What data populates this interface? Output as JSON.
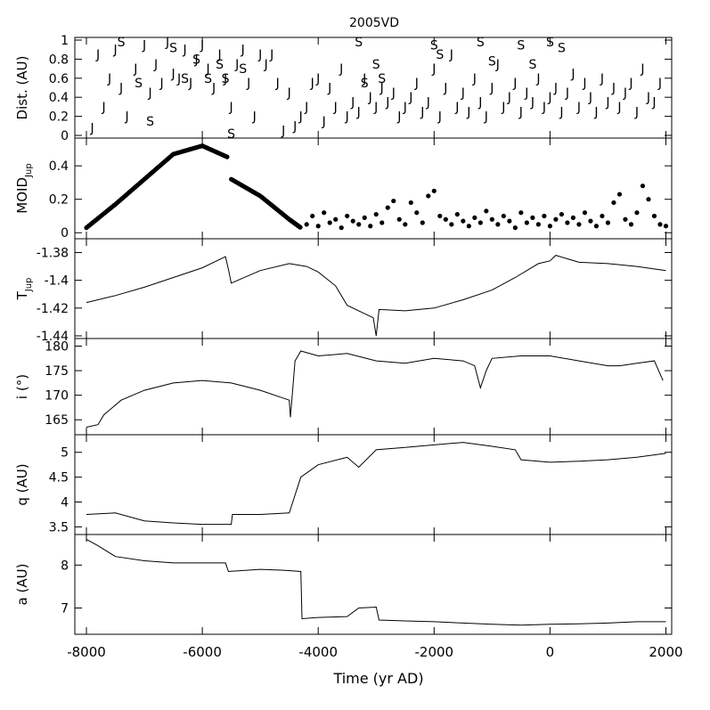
{
  "figure": {
    "title": "2005VD",
    "xlabel": "Time (yr AD)",
    "xlim": [
      -8200,
      2100
    ],
    "xticks": [
      -8000,
      -6000,
      -4000,
      -2000,
      0,
      2000
    ]
  },
  "chart_data": [
    {
      "id": "dist",
      "type": "scatter",
      "ylabel": "Dist. (AU)",
      "ylim": [
        0,
        1
      ],
      "yticks": [
        "0",
        "0.2",
        "0.4",
        "0.6",
        "0.8",
        "1"
      ],
      "marker_labels": {
        "jupiter": "J",
        "saturn": "S"
      },
      "series": [
        {
          "name": "J",
          "x": [
            -7900,
            -7800,
            -7700,
            -7600,
            -7500,
            -7400,
            -7300,
            -7150,
            -7000,
            -6900,
            -6800,
            -6700,
            -6600,
            -6500,
            -6400,
            -6300,
            -6200,
            -6100,
            -6000,
            -5900,
            -5800,
            -5700,
            -5600,
            -5500,
            -5400,
            -5300,
            -5200,
            -5100,
            -5000,
            -4900,
            -4800,
            -4700,
            -4600,
            -4500,
            -4400,
            -4300,
            -4200,
            -4100,
            -4000,
            -3900,
            -3800,
            -3700,
            -3600,
            -3500,
            -3400,
            -3300,
            -3200,
            -3100,
            -3000,
            -2900,
            -2800,
            -2700,
            -2600,
            -2500,
            -2400,
            -2300,
            -2200,
            -2100,
            -2000,
            -1900,
            -1800,
            -1700,
            -1600,
            -1500,
            -1400,
            -1300,
            -1200,
            -1100,
            -1000,
            -900,
            -800,
            -700,
            -600,
            -500,
            -400,
            -300,
            -200,
            -100,
            0,
            100,
            200,
            300,
            400,
            500,
            600,
            700,
            800,
            900,
            1000,
            1100,
            1200,
            1300,
            1400,
            1500,
            1600,
            1700,
            1800,
            1900
          ],
          "y": [
            0.08,
            0.85,
            0.3,
            0.6,
            0.9,
            0.5,
            0.2,
            0.7,
            0.95,
            0.45,
            0.75,
            0.55,
            0.98,
            0.65,
            0.6,
            0.9,
            0.55,
            0.8,
            0.95,
            0.7,
            0.5,
            0.85,
            0.6,
            0.3,
            0.75,
            0.9,
            0.55,
            0.2,
            0.85,
            0.75,
            0.85,
            0.55,
            0.05,
            0.45,
            0.1,
            0.2,
            0.3,
            0.55,
            0.6,
            0.15,
            0.5,
            0.3,
            0.7,
            0.2,
            0.35,
            0.25,
            0.6,
            0.4,
            0.3,
            0.5,
            0.35,
            0.45,
            0.2,
            0.3,
            0.4,
            0.55,
            0.25,
            0.35,
            0.7,
            0.2,
            0.5,
            0.85,
            0.3,
            0.45,
            0.25,
            0.6,
            0.35,
            0.2,
            0.5,
            0.75,
            0.3,
            0.4,
            0.55,
            0.25,
            0.45,
            0.35,
            0.6,
            0.3,
            0.4,
            0.5,
            0.25,
            0.45,
            0.65,
            0.3,
            0.55,
            0.4,
            0.25,
            0.6,
            0.35,
            0.5,
            0.3,
            0.45,
            0.55,
            0.25,
            0.7,
            0.4,
            0.35,
            0.55
          ]
        },
        {
          "name": "S",
          "x": [
            -7400,
            -7100,
            -6900,
            -6500,
            -6300,
            -6100,
            -5900,
            -5700,
            -5600,
            -5500,
            -5300,
            -3300,
            -3200,
            -3000,
            -2900,
            -2000,
            -1900,
            -1200,
            -1000,
            -500,
            -300,
            0,
            200
          ],
          "y": [
            0.98,
            0.55,
            0.15,
            0.92,
            0.6,
            0.8,
            0.6,
            0.75,
            0.6,
            0.02,
            0.7,
            0.98,
            0.55,
            0.75,
            0.6,
            0.95,
            0.85,
            0.98,
            0.78,
            0.95,
            0.75,
            0.98,
            0.92
          ]
        }
      ]
    },
    {
      "id": "moid",
      "type": "scatter",
      "ylabel": "MOID",
      "ylabel_sub": "Jup",
      "ylim": [
        -0.02,
        0.55
      ],
      "yticks": [
        "0",
        "0.2",
        "0.4"
      ],
      "segments": [
        {
          "x": [
            -8000,
            -7500,
            -7000,
            -6500,
            -6000,
            -5550
          ],
          "y": [
            0.03,
            0.17,
            0.32,
            0.47,
            0.52,
            0.45
          ]
        },
        {
          "x": [
            -5500,
            -5000,
            -4500,
            -4300
          ],
          "y": [
            0.32,
            0.22,
            0.08,
            0.03
          ]
        }
      ],
      "scatter_x": [
        -4200,
        -4100,
        -4000,
        -3900,
        -3800,
        -3700,
        -3600,
        -3500,
        -3400,
        -3300,
        -3200,
        -3100,
        -3000,
        -2900,
        -2800,
        -2700,
        -2600,
        -2500,
        -2400,
        -2300,
        -2200,
        -2100,
        -2000,
        -1900,
        -1800,
        -1700,
        -1600,
        -1500,
        -1400,
        -1300,
        -1200,
        -1100,
        -1000,
        -900,
        -800,
        -700,
        -600,
        -500,
        -400,
        -300,
        -200,
        -100,
        0,
        100,
        200,
        300,
        400,
        500,
        600,
        700,
        800,
        900,
        1000,
        1100,
        1200,
        1300,
        1400,
        1500,
        1600,
        1700,
        1800,
        1900,
        2000
      ],
      "scatter_y": [
        0.05,
        0.1,
        0.04,
        0.12,
        0.06,
        0.08,
        0.03,
        0.1,
        0.07,
        0.05,
        0.09,
        0.04,
        0.11,
        0.06,
        0.15,
        0.19,
        0.08,
        0.05,
        0.18,
        0.12,
        0.06,
        0.22,
        0.25,
        0.1,
        0.08,
        0.05,
        0.11,
        0.07,
        0.04,
        0.09,
        0.06,
        0.13,
        0.08,
        0.05,
        0.1,
        0.07,
        0.03,
        0.12,
        0.06,
        0.09,
        0.05,
        0.1,
        0.04,
        0.08,
        0.11,
        0.06,
        0.09,
        0.05,
        0.12,
        0.07,
        0.04,
        0.1,
        0.06,
        0.18,
        0.23,
        0.08,
        0.05,
        0.12,
        0.28,
        0.2,
        0.1,
        0.05,
        0.04
      ]
    },
    {
      "id": "tjup",
      "type": "line",
      "ylabel": "T",
      "ylabel_sub": "Jup",
      "ylim": [
        -1.44,
        -1.372
      ],
      "yticks": [
        "-1.44",
        "-1.42",
        "-1.4",
        "-1.38"
      ],
      "x": [
        -8000,
        -7500,
        -7000,
        -6500,
        -6000,
        -5600,
        -5550,
        -5500,
        -5000,
        -4500,
        -4200,
        -4000,
        -3700,
        -3500,
        -3200,
        -3050,
        -3000,
        -2950,
        -2500,
        -2000,
        -1500,
        -1000,
        -600,
        -200,
        0,
        100,
        500,
        1000,
        1500,
        2000
      ],
      "y": [
        -1.416,
        -1.411,
        -1.405,
        -1.398,
        -1.391,
        -1.383,
        -1.392,
        -1.402,
        -1.393,
        -1.388,
        -1.39,
        -1.394,
        -1.404,
        -1.418,
        -1.424,
        -1.427,
        -1.44,
        -1.421,
        -1.422,
        -1.42,
        -1.414,
        -1.407,
        -1.398,
        -1.388,
        -1.386,
        -1.382,
        -1.387,
        -1.388,
        -1.39,
        -1.393
      ]
    },
    {
      "id": "incl",
      "type": "line",
      "ylabel": "i (°)",
      "ylim": [
        162.5,
        181
      ],
      "yticks": [
        "165",
        "170",
        "175",
        "180"
      ],
      "x": [
        -8000,
        -7800,
        -7700,
        -7400,
        -7000,
        -6500,
        -6000,
        -5500,
        -5000,
        -4500,
        -4480,
        -4400,
        -4300,
        -4000,
        -3500,
        -3000,
        -2500,
        -2000,
        -1500,
        -1300,
        -1200,
        -1100,
        -1000,
        -500,
        0,
        500,
        1000,
        1200,
        1500,
        1800,
        1950
      ],
      "y": [
        163.5,
        164,
        166,
        169,
        171,
        172.5,
        173,
        172.5,
        171,
        169,
        165.5,
        177,
        179,
        178,
        178.5,
        177,
        176.5,
        177.5,
        177,
        176,
        171.5,
        175,
        177.5,
        178,
        178,
        177,
        176,
        176,
        176.5,
        177,
        173
      ]
    },
    {
      "id": "q",
      "type": "line",
      "ylabel": "q (AU)",
      "ylim": [
        3.4,
        5.3
      ],
      "yticks": [
        "3.5",
        "4",
        "4.5",
        "5"
      ],
      "x": [
        -8000,
        -7500,
        -7000,
        -6500,
        -6000,
        -5500,
        -5480,
        -5000,
        -4500,
        -4300,
        -4000,
        -3500,
        -3300,
        -3000,
        -2500,
        -2000,
        -1500,
        -1000,
        -600,
        -500,
        0,
        500,
        1000,
        1500,
        2000
      ],
      "y": [
        3.75,
        3.78,
        3.62,
        3.58,
        3.55,
        3.55,
        3.75,
        3.75,
        3.78,
        4.5,
        4.75,
        4.9,
        4.7,
        5.05,
        5.1,
        5.15,
        5.2,
        5.12,
        5.05,
        4.85,
        4.8,
        4.82,
        4.85,
        4.9,
        4.98
      ]
    },
    {
      "id": "a",
      "type": "line",
      "ylabel": "a (AU)",
      "ylim": [
        6.45,
        8.65
      ],
      "yticks": [
        "7",
        "8"
      ],
      "x": [
        -8000,
        -7800,
        -7500,
        -7000,
        -6500,
        -6000,
        -5600,
        -5550,
        -5000,
        -4600,
        -4300,
        -4280,
        -4000,
        -3500,
        -3300,
        -3000,
        -2950,
        -2500,
        -2000,
        -1500,
        -1000,
        -500,
        0,
        500,
        1000,
        1500,
        2000
      ],
      "y": [
        8.6,
        8.45,
        8.2,
        8.1,
        8.05,
        8.05,
        8.05,
        7.85,
        7.9,
        7.88,
        7.85,
        6.75,
        6.78,
        6.8,
        7.0,
        7.02,
        6.72,
        6.7,
        6.68,
        6.65,
        6.62,
        6.6,
        6.62,
        6.63,
        6.65,
        6.68,
        6.68
      ]
    }
  ]
}
